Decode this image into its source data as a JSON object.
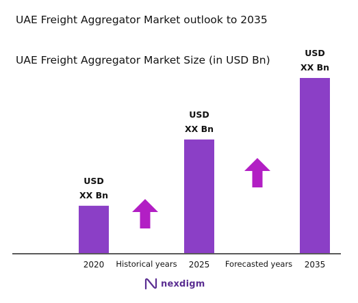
{
  "title": "UAE Freight Aggregator Market outlook to 2035",
  "subtitle": "UAE Freight Aggregator Market Size (in USD Bn)",
  "colors": {
    "bar": "#8b3fc6",
    "arrow": "#b21fc4",
    "axis": "#222222",
    "logo": "#5a2d91"
  },
  "chart_data": {
    "type": "bar",
    "categories": [
      "2020",
      "2025",
      "2035"
    ],
    "values": [
      1,
      2.4,
      3.7
    ],
    "bar_labels": [
      [
        "USD",
        "XX Bn"
      ],
      [
        "USD",
        "XX Bn"
      ],
      [
        "USD",
        "XX Bn"
      ]
    ],
    "period_labels": [
      "Historical years",
      "Forecasted years"
    ],
    "ylim": [
      0,
      3.7
    ],
    "grid": false
  },
  "logo": {
    "icon": "nexdigm-logo-icon",
    "text": "nexdigm"
  }
}
